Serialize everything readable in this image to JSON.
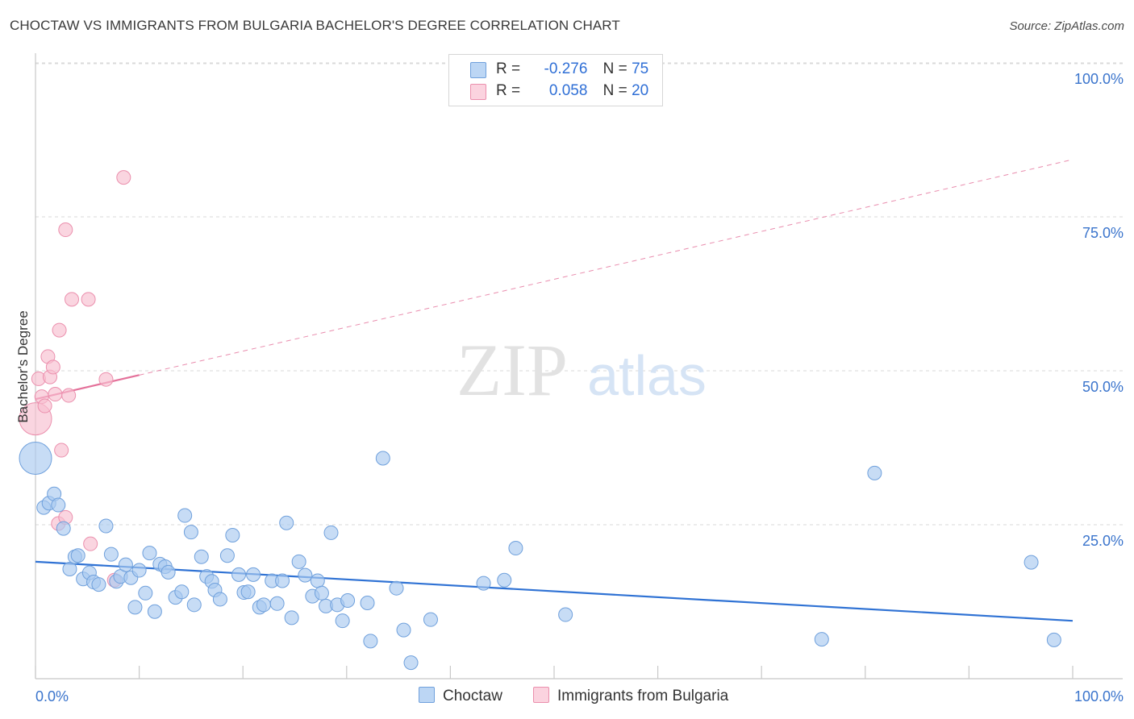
{
  "title": "CHOCTAW VS IMMIGRANTS FROM BULGARIA BACHELOR'S DEGREE CORRELATION CHART",
  "source": "Source: ZipAtlas.com",
  "watermark": {
    "zip": "ZIP",
    "atlas": "atlas"
  },
  "legend": [
    {
      "r_label": "R =",
      "r_value": "-0.276",
      "n_label": "N =",
      "n_value": "75"
    },
    {
      "r_label": "R =",
      "r_value": "0.058",
      "n_label": "N =",
      "n_value": "20"
    }
  ],
  "bottom_legend": [
    "Choctaw",
    "Immigrants from Bulgaria"
  ],
  "colors": {
    "choctaw_fill": "#a9c9f0",
    "choctaw_stroke": "#6fa0dc",
    "choctaw_line": "#2f72d4",
    "bulgaria_fill": "#f7bfd0",
    "bulgaria_stroke": "#eb8fad",
    "bulgaria_line": "#e4719a",
    "axis_label": "#3a74cc",
    "grid": "#d9d9d9"
  },
  "chart_data": {
    "type": "scatter",
    "title": "CHOCTAW VS IMMIGRANTS FROM BULGARIA BACHELOR'S DEGREE CORRELATION CHART",
    "xlabel": "",
    "ylabel": "Bachelor's Degree",
    "xlim": [
      0,
      100
    ],
    "ylim": [
      0,
      100
    ],
    "x_tick_labels": [
      "0.0%",
      "100.0%"
    ],
    "y_tick_labels": [
      {
        "value": 25,
        "label": "25.0%"
      },
      {
        "value": 50,
        "label": "50.0%"
      },
      {
        "value": 75,
        "label": "75.0%"
      },
      {
        "value": 100,
        "label": "100.0%"
      }
    ],
    "series": [
      {
        "name": "Choctaw",
        "r": -0.276,
        "n": 75,
        "trend": {
          "x": [
            0,
            100
          ],
          "y": [
            19.0,
            9.4
          ],
          "dashed_extension": false
        },
        "points": [
          {
            "x": 0.0,
            "y": 35.8,
            "big": true
          },
          {
            "x": 0.8,
            "y": 27.8
          },
          {
            "x": 1.3,
            "y": 28.5
          },
          {
            "x": 1.8,
            "y": 30.0
          },
          {
            "x": 2.2,
            "y": 28.2
          },
          {
            "x": 2.7,
            "y": 24.4
          },
          {
            "x": 3.3,
            "y": 17.8
          },
          {
            "x": 3.8,
            "y": 19.8
          },
          {
            "x": 4.1,
            "y": 20.0
          },
          {
            "x": 4.6,
            "y": 16.2
          },
          {
            "x": 5.2,
            "y": 17.2
          },
          {
            "x": 5.6,
            "y": 15.7
          },
          {
            "x": 6.1,
            "y": 15.3
          },
          {
            "x": 6.8,
            "y": 24.8
          },
          {
            "x": 7.3,
            "y": 20.2
          },
          {
            "x": 7.8,
            "y": 15.8
          },
          {
            "x": 8.2,
            "y": 16.6
          },
          {
            "x": 8.7,
            "y": 18.5
          },
          {
            "x": 9.2,
            "y": 16.4
          },
          {
            "x": 9.6,
            "y": 11.6
          },
          {
            "x": 10.0,
            "y": 17.6
          },
          {
            "x": 10.6,
            "y": 13.9
          },
          {
            "x": 11.0,
            "y": 20.4
          },
          {
            "x": 11.5,
            "y": 10.9
          },
          {
            "x": 12.0,
            "y": 18.6
          },
          {
            "x": 12.5,
            "y": 18.2
          },
          {
            "x": 12.8,
            "y": 17.3
          },
          {
            "x": 13.5,
            "y": 13.2
          },
          {
            "x": 14.1,
            "y": 14.1
          },
          {
            "x": 14.4,
            "y": 26.5
          },
          {
            "x": 15.0,
            "y": 23.8
          },
          {
            "x": 15.3,
            "y": 12.0
          },
          {
            "x": 16.0,
            "y": 19.8
          },
          {
            "x": 16.5,
            "y": 16.6
          },
          {
            "x": 17.0,
            "y": 15.8
          },
          {
            "x": 17.3,
            "y": 14.4
          },
          {
            "x": 17.8,
            "y": 12.9
          },
          {
            "x": 18.5,
            "y": 20.0
          },
          {
            "x": 19.0,
            "y": 23.3
          },
          {
            "x": 19.6,
            "y": 16.9
          },
          {
            "x": 20.1,
            "y": 14.0
          },
          {
            "x": 20.5,
            "y": 14.1
          },
          {
            "x": 21.0,
            "y": 16.9
          },
          {
            "x": 21.6,
            "y": 11.6
          },
          {
            "x": 22.0,
            "y": 12.0
          },
          {
            "x": 22.8,
            "y": 15.9
          },
          {
            "x": 23.3,
            "y": 12.2
          },
          {
            "x": 23.8,
            "y": 15.9
          },
          {
            "x": 24.2,
            "y": 25.3
          },
          {
            "x": 24.7,
            "y": 9.9
          },
          {
            "x": 25.4,
            "y": 19.0
          },
          {
            "x": 26.0,
            "y": 16.8
          },
          {
            "x": 26.7,
            "y": 13.4
          },
          {
            "x": 27.2,
            "y": 15.9
          },
          {
            "x": 27.6,
            "y": 13.9
          },
          {
            "x": 28.0,
            "y": 11.8
          },
          {
            "x": 28.5,
            "y": 23.7
          },
          {
            "x": 29.1,
            "y": 12.0
          },
          {
            "x": 29.6,
            "y": 9.4
          },
          {
            "x": 30.1,
            "y": 12.7
          },
          {
            "x": 32.0,
            "y": 12.3
          },
          {
            "x": 32.3,
            "y": 6.1
          },
          {
            "x": 33.5,
            "y": 35.8
          },
          {
            "x": 34.8,
            "y": 14.7
          },
          {
            "x": 35.5,
            "y": 7.9
          },
          {
            "x": 36.2,
            "y": 2.6
          },
          {
            "x": 38.1,
            "y": 9.6
          },
          {
            "x": 43.2,
            "y": 15.5
          },
          {
            "x": 45.2,
            "y": 16.0
          },
          {
            "x": 46.3,
            "y": 21.2
          },
          {
            "x": 51.1,
            "y": 10.4
          },
          {
            "x": 75.8,
            "y": 6.4
          },
          {
            "x": 80.9,
            "y": 33.4
          },
          {
            "x": 96.0,
            "y": 18.9
          },
          {
            "x": 98.2,
            "y": 6.3
          }
        ]
      },
      {
        "name": "Immigrants from Bulgaria",
        "r": 0.058,
        "n": 20,
        "trend": {
          "x": [
            0,
            10
          ],
          "y": [
            45.4,
            49.3
          ],
          "dashed_extension": {
            "x": [
              10,
              100
            ],
            "y": [
              49.3,
              84.3
            ]
          }
        },
        "points": [
          {
            "x": 0.0,
            "y": 42.2,
            "big": true
          },
          {
            "x": 0.3,
            "y": 48.7
          },
          {
            "x": 0.6,
            "y": 45.8
          },
          {
            "x": 0.9,
            "y": 44.3
          },
          {
            "x": 1.2,
            "y": 52.3
          },
          {
            "x": 1.4,
            "y": 49.0
          },
          {
            "x": 1.7,
            "y": 50.6
          },
          {
            "x": 1.9,
            "y": 46.2
          },
          {
            "x": 2.2,
            "y": 25.2
          },
          {
            "x": 2.3,
            "y": 56.6
          },
          {
            "x": 2.5,
            "y": 37.1
          },
          {
            "x": 2.9,
            "y": 72.9
          },
          {
            "x": 2.9,
            "y": 26.2
          },
          {
            "x": 3.2,
            "y": 46.0
          },
          {
            "x": 3.5,
            "y": 61.6
          },
          {
            "x": 5.1,
            "y": 61.6
          },
          {
            "x": 5.3,
            "y": 21.9
          },
          {
            "x": 6.8,
            "y": 48.6
          },
          {
            "x": 7.6,
            "y": 16.0
          },
          {
            "x": 8.5,
            "y": 81.4
          }
        ]
      }
    ]
  }
}
